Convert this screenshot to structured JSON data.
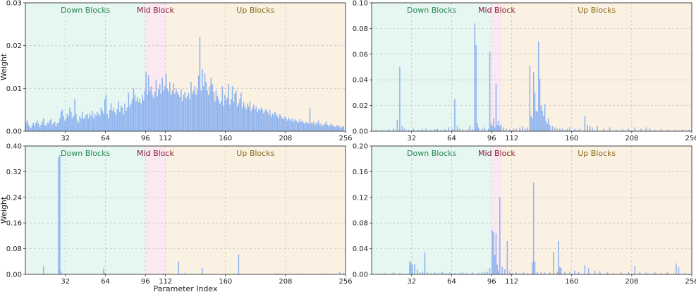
{
  "figure": {
    "xlabel": "Parameter Index",
    "ylabel": "Weight"
  },
  "colors": {
    "bar": "#8fb4ef",
    "down_fill": "#e6f6f0",
    "mid_fill": "#fbe8f0",
    "up_fill": "#fbf1e3",
    "down_text": "#2a8a5a",
    "mid_text": "#8a1f3a",
    "up_text": "#8a6a1a",
    "grid": "#c8c8c8"
  },
  "chart_data": [
    {
      "type": "bar",
      "position": "top-left",
      "xlim": [
        0,
        256
      ],
      "ylim": [
        0,
        0.03
      ],
      "xticks": [
        32,
        64,
        96,
        112,
        160,
        208,
        256
      ],
      "yticks": [
        0.0,
        0.01,
        0.02,
        0.03
      ],
      "ytick_labels": [
        "0.00",
        "0.01",
        "0.02",
        "0.03"
      ],
      "show_ylabel": true,
      "show_xlabel": false,
      "grid": true,
      "regions": [
        {
          "label": "Down Blocks",
          "start": 0,
          "end": 96
        },
        {
          "label": "Mid Block",
          "start": 96,
          "end": 112
        },
        {
          "label": "Up Blocks",
          "start": 112,
          "end": 256
        }
      ],
      "values": [
        0.002,
        0.0025,
        0.0015,
        0.001,
        0.0008,
        0.0015,
        0.002,
        0.0012,
        0.002,
        0.0025,
        0.0018,
        0.001,
        0.0015,
        0.0022,
        0.003,
        0.0015,
        0.0012,
        0.002,
        0.0018,
        0.0025,
        0.0028,
        0.0015,
        0.002,
        0.0022,
        0.0012,
        0.0018,
        0.002,
        0.003,
        0.0045,
        0.005,
        0.0035,
        0.0025,
        0.003,
        0.004,
        0.0035,
        0.0055,
        0.0045,
        0.003,
        0.0035,
        0.0075,
        0.004,
        0.0025,
        0.002,
        0.0035,
        0.003,
        0.0045,
        0.0028,
        0.0032,
        0.0038,
        0.004,
        0.003,
        0.0042,
        0.0036,
        0.0048,
        0.003,
        0.004,
        0.0035,
        0.0045,
        0.004,
        0.0035,
        0.0055,
        0.0048,
        0.0042,
        0.0075,
        0.0085,
        0.004,
        0.003,
        0.005,
        0.0065,
        0.0048,
        0.0055,
        0.0045,
        0.0038,
        0.0052,
        0.007,
        0.0045,
        0.006,
        0.0055,
        0.004,
        0.0065,
        0.0048,
        0.0055,
        0.009,
        0.0058,
        0.0065,
        0.0075,
        0.01,
        0.0085,
        0.007,
        0.008,
        0.0068,
        0.0075,
        0.0065,
        0.0085,
        0.0072,
        0.0095,
        0.0138,
        0.0085,
        0.013,
        0.0095,
        0.0105,
        0.0085,
        0.0078,
        0.0092,
        0.012,
        0.0082,
        0.0098,
        0.011,
        0.0088,
        0.0125,
        0.0095,
        0.0105,
        0.0135,
        0.01,
        0.0092,
        0.0115,
        0.0085,
        0.0095,
        0.0112,
        0.0088,
        0.01,
        0.0092,
        0.0086,
        0.008,
        0.0098,
        0.007,
        0.0085,
        0.0092,
        0.0078,
        0.0082,
        0.009,
        0.0075,
        0.0115,
        0.0088,
        0.0095,
        0.0105,
        0.0085,
        0.0098,
        0.013,
        0.022,
        0.0095,
        0.0145,
        0.0105,
        0.0135,
        0.0115,
        0.0095,
        0.0085,
        0.0105,
        0.0125,
        0.011,
        0.0092,
        0.007,
        0.0095,
        0.0082,
        0.0075,
        0.0065,
        0.007,
        0.0105,
        0.006,
        0.0085,
        0.0072,
        0.0078,
        0.011,
        0.0062,
        0.0075,
        0.0105,
        0.0068,
        0.0088,
        0.0095,
        0.0058,
        0.0065,
        0.0075,
        0.009,
        0.0055,
        0.0068,
        0.006,
        0.0052,
        0.0065,
        0.0058,
        0.007,
        0.0048,
        0.0055,
        0.0062,
        0.005,
        0.0058,
        0.0045,
        0.0052,
        0.0048,
        0.0055,
        0.005,
        0.0042,
        0.0048,
        0.0052,
        0.0045,
        0.004,
        0.005,
        0.0035,
        0.0042,
        0.0038,
        0.0045,
        0.004,
        0.0035,
        0.003,
        0.004,
        0.0035,
        0.003,
        0.0028,
        0.0035,
        0.003,
        0.0025,
        0.0032,
        0.0028,
        0.0025,
        0.003,
        0.0022,
        0.0028,
        0.0025,
        0.0022,
        0.002,
        0.0028,
        0.0022,
        0.0025,
        0.002,
        0.0018,
        0.0022,
        0.002,
        0.0018,
        0.0055,
        0.002,
        0.0018,
        0.0022,
        0.0015,
        0.002,
        0.0018,
        0.0025,
        0.0015,
        0.0018,
        0.0012,
        0.0015,
        0.0018,
        0.0022,
        0.0015,
        0.0012,
        0.0015,
        0.0018,
        0.0012,
        0.0015,
        0.001,
        0.0012,
        0.0015,
        0.001,
        0.0012,
        0.0008,
        0.001,
        0.0012
      ]
    },
    {
      "type": "bar",
      "position": "top-right",
      "xlim": [
        0,
        256
      ],
      "ylim": [
        0,
        0.1
      ],
      "xticks": [
        32,
        64,
        96,
        112,
        160,
        208,
        256
      ],
      "yticks": [
        0.0,
        0.02,
        0.04,
        0.06,
        0.08,
        0.1
      ],
      "ytick_labels": [
        "0.00",
        "0.02",
        "0.04",
        "0.06",
        "0.08",
        "0.10"
      ],
      "show_ylabel": false,
      "show_xlabel": false,
      "grid": true,
      "regions": [
        {
          "label": "Down Blocks",
          "start": 0,
          "end": 96
        },
        {
          "label": "Mid Block",
          "start": 96,
          "end": 104
        },
        {
          "label": "Up Blocks",
          "start": 104,
          "end": 256
        }
      ],
      "points": [
        [
          3,
          0.001
        ],
        [
          8,
          0.001
        ],
        [
          13,
          0.0015
        ],
        [
          17,
          0.002
        ],
        [
          20,
          0.009
        ],
        [
          22,
          0.05
        ],
        [
          24,
          0.004
        ],
        [
          26,
          0.002
        ],
        [
          29,
          0.001
        ],
        [
          33,
          0.002
        ],
        [
          37,
          0.001
        ],
        [
          40,
          0.0015
        ],
        [
          43,
          0.002
        ],
        [
          47,
          0.001
        ],
        [
          50,
          0.0015
        ],
        [
          52,
          0.002
        ],
        [
          55,
          0.001
        ],
        [
          58,
          0.0015
        ],
        [
          61,
          0.003
        ],
        [
          64,
          0.002
        ],
        [
          66,
          0.025
        ],
        [
          68,
          0.004
        ],
        [
          70,
          0.002
        ],
        [
          73,
          0.001
        ],
        [
          76,
          0.0015
        ],
        [
          78,
          0.004
        ],
        [
          80,
          0.0015
        ],
        [
          82,
          0.084
        ],
        [
          83,
          0.067
        ],
        [
          84,
          0.006
        ],
        [
          85,
          0.003
        ],
        [
          88,
          0.002
        ],
        [
          90,
          0.003
        ],
        [
          93,
          0.002
        ],
        [
          94,
          0.062
        ],
        [
          95,
          0.006
        ],
        [
          96,
          0.004
        ],
        [
          97,
          0.01
        ],
        [
          98,
          0.003
        ],
        [
          99,
          0.037
        ],
        [
          100,
          0.005
        ],
        [
          101,
          0.008
        ],
        [
          102,
          0.004
        ],
        [
          103,
          0.005
        ],
        [
          105,
          0.003
        ],
        [
          107,
          0.002
        ],
        [
          110,
          0.0015
        ],
        [
          113,
          0.002
        ],
        [
          115,
          0.002
        ],
        [
          118,
          0.003
        ],
        [
          120,
          0.004
        ],
        [
          122,
          0.002
        ],
        [
          124,
          0.003
        ],
        [
          126,
          0.051
        ],
        [
          127,
          0.012
        ],
        [
          128,
          0.01
        ],
        [
          129,
          0.046
        ],
        [
          130,
          0.03
        ],
        [
          131,
          0.016
        ],
        [
          132,
          0.015
        ],
        [
          133,
          0.07
        ],
        [
          134,
          0.041
        ],
        [
          135,
          0.02
        ],
        [
          136,
          0.016
        ],
        [
          137,
          0.012
        ],
        [
          138,
          0.021
        ],
        [
          139,
          0.008
        ],
        [
          140,
          0.006
        ],
        [
          141,
          0.01
        ],
        [
          142,
          0.005
        ],
        [
          144,
          0.004
        ],
        [
          146,
          0.003
        ],
        [
          148,
          0.002
        ],
        [
          150,
          0.002
        ],
        [
          152,
          0.002
        ],
        [
          154,
          0.001
        ],
        [
          156,
          0.002
        ],
        [
          158,
          0.003
        ],
        [
          162,
          0.002
        ],
        [
          164,
          0.001
        ],
        [
          166,
          0.002
        ],
        [
          170,
          0.012
        ],
        [
          172,
          0.005
        ],
        [
          174,
          0.004
        ],
        [
          176,
          0.003
        ],
        [
          180,
          0.004
        ],
        [
          185,
          0.002
        ],
        [
          190,
          0.003
        ],
        [
          195,
          0.001
        ],
        [
          200,
          0.0015
        ],
        [
          205,
          0.002
        ],
        [
          210,
          0.003
        ],
        [
          215,
          0.002
        ],
        [
          219,
          0.003
        ],
        [
          222,
          0.002
        ],
        [
          226,
          0.001
        ],
        [
          231,
          0.0015
        ],
        [
          236,
          0.001
        ],
        [
          242,
          0.001
        ],
        [
          248,
          0.0015
        ],
        [
          253,
          0.001
        ]
      ]
    },
    {
      "type": "bar",
      "position": "bottom-left",
      "xlim": [
        0,
        256
      ],
      "ylim": [
        0,
        0.4
      ],
      "xticks": [
        32,
        64,
        96,
        112,
        160,
        208,
        256
      ],
      "yticks": [
        0.0,
        0.08,
        0.16,
        0.24,
        0.32,
        0.4
      ],
      "ytick_labels": [
        "0.00",
        "0.08",
        "0.16",
        "0.24",
        "0.32",
        "0.40"
      ],
      "show_ylabel": true,
      "show_xlabel": true,
      "grid": true,
      "regions": [
        {
          "label": "Down Blocks",
          "start": 0,
          "end": 96
        },
        {
          "label": "Mid Block",
          "start": 96,
          "end": 112
        },
        {
          "label": "Up Blocks",
          "start": 112,
          "end": 256
        }
      ],
      "points": [
        [
          14,
          0.025
        ],
        [
          26,
          0.365
        ],
        [
          27,
          0.372
        ],
        [
          28,
          0.01
        ],
        [
          62,
          0.018
        ],
        [
          63,
          0.005
        ],
        [
          110,
          0.004
        ],
        [
          122,
          0.04
        ],
        [
          127,
          0.004
        ],
        [
          141,
          0.02
        ],
        [
          170,
          0.062
        ],
        [
          200,
          0.003
        ],
        [
          202,
          0.003
        ],
        [
          218,
          0.003
        ],
        [
          240,
          0.003
        ],
        [
          251,
          0.007
        ],
        [
          254,
          0.005
        ]
      ]
    },
    {
      "type": "bar",
      "position": "bottom-right",
      "xlim": [
        0,
        256
      ],
      "ylim": [
        0,
        0.2
      ],
      "xticks": [
        32,
        64,
        96,
        112,
        160,
        208,
        256
      ],
      "yticks": [
        0.0,
        0.04,
        0.08,
        0.12,
        0.16,
        0.2
      ],
      "ytick_labels": [
        "0.00",
        "0.04",
        "0.08",
        "0.12",
        "0.16",
        "0.20"
      ],
      "show_ylabel": false,
      "show_xlabel": false,
      "grid": true,
      "regions": [
        {
          "label": "Down Blocks",
          "start": 0,
          "end": 96
        },
        {
          "label": "Mid Block",
          "start": 96,
          "end": 104
        },
        {
          "label": "Up Blocks",
          "start": 104,
          "end": 256
        }
      ],
      "points": [
        [
          10,
          0.002
        ],
        [
          17,
          0.003
        ],
        [
          22,
          0.002
        ],
        [
          30,
          0.02
        ],
        [
          31,
          0.018
        ],
        [
          32,
          0.015
        ],
        [
          34,
          0.016
        ],
        [
          36,
          0.008
        ],
        [
          38,
          0.003
        ],
        [
          40,
          0.004
        ],
        [
          42,
          0.034
        ],
        [
          44,
          0.004
        ],
        [
          47,
          0.002
        ],
        [
          50,
          0.003
        ],
        [
          53,
          0.002
        ],
        [
          56,
          0.004
        ],
        [
          59,
          0.002
        ],
        [
          62,
          0.003
        ],
        [
          66,
          0.002
        ],
        [
          70,
          0.002
        ],
        [
          72,
          0.003
        ],
        [
          75,
          0.002
        ],
        [
          80,
          0.003
        ],
        [
          85,
          0.002
        ],
        [
          88,
          0.003
        ],
        [
          90,
          0.004
        ],
        [
          92,
          0.004
        ],
        [
          94,
          0.01
        ],
        [
          96,
          0.069
        ],
        [
          97,
          0.066
        ],
        [
          98,
          0.03
        ],
        [
          99,
          0.064
        ],
        [
          100,
          0.015
        ],
        [
          101,
          0.005
        ],
        [
          102,
          0.12
        ],
        [
          104,
          0.012
        ],
        [
          106,
          0.008
        ],
        [
          108,
          0.052
        ],
        [
          110,
          0.005
        ],
        [
          112,
          0.002
        ],
        [
          115,
          0.003
        ],
        [
          118,
          0.002
        ],
        [
          121,
          0.003
        ],
        [
          124,
          0.002
        ],
        [
          128,
          0.019
        ],
        [
          129,
          0.143
        ],
        [
          130,
          0.02
        ],
        [
          132,
          0.004
        ],
        [
          135,
          0.003
        ],
        [
          138,
          0.003
        ],
        [
          142,
          0.003
        ],
        [
          145,
          0.035
        ],
        [
          148,
          0.004
        ],
        [
          149,
          0.052
        ],
        [
          150,
          0.012
        ],
        [
          151,
          0.01
        ],
        [
          154,
          0.004
        ],
        [
          158,
          0.004
        ],
        [
          162,
          0.006
        ],
        [
          165,
          0.004
        ],
        [
          170,
          0.014
        ],
        [
          173,
          0.01
        ],
        [
          178,
          0.006
        ],
        [
          182,
          0.005
        ],
        [
          188,
          0.003
        ],
        [
          193,
          0.002
        ],
        [
          199,
          0.003
        ],
        [
          205,
          0.003
        ],
        [
          210,
          0.013
        ],
        [
          214,
          0.004
        ],
        [
          219,
          0.003
        ],
        [
          226,
          0.004
        ],
        [
          231,
          0.002
        ],
        [
          236,
          0.003
        ],
        [
          243,
          0.017
        ],
        [
          245,
          0.011
        ],
        [
          250,
          0.002
        ]
      ]
    }
  ]
}
